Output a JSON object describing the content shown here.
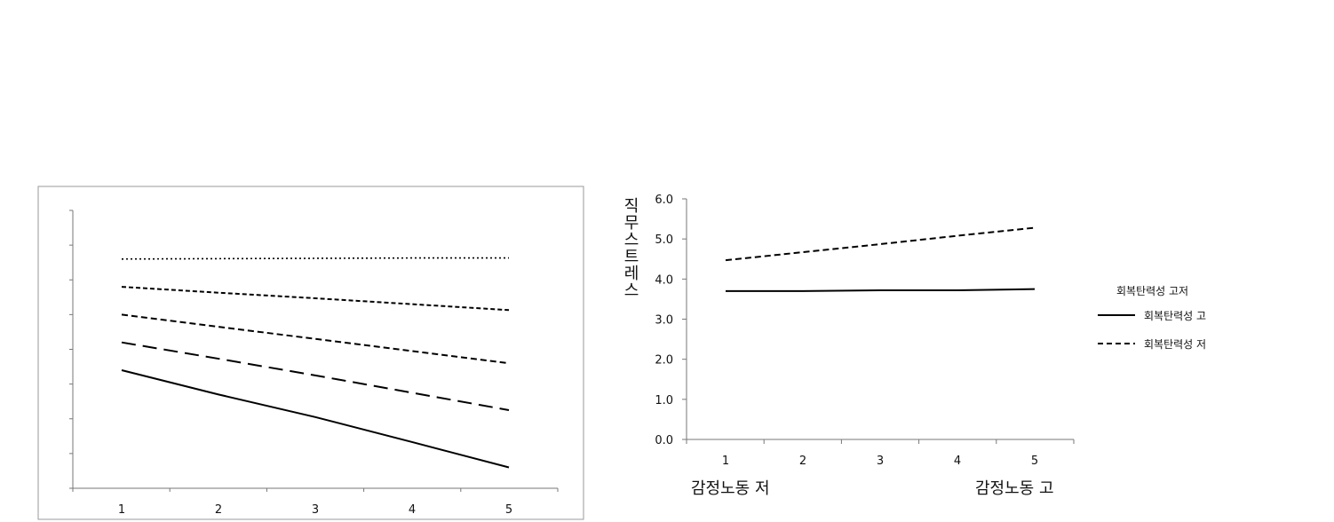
{
  "chart_data": [
    {
      "type": "line",
      "x": [
        1,
        2,
        3,
        4,
        5
      ],
      "y_axis_tick_labels": "none",
      "ylim": [
        0,
        8
      ],
      "series": [
        {
          "style": "dotted",
          "values": [
            6.6,
            6.61,
            6.62,
            6.63,
            6.63
          ]
        },
        {
          "style": "short-dash",
          "values": [
            5.8,
            5.63,
            5.47,
            5.3,
            5.13
          ]
        },
        {
          "style": "dashed",
          "values": [
            5.0,
            4.65,
            4.3,
            3.95,
            3.6
          ]
        },
        {
          "style": "long-dash",
          "values": [
            4.2,
            3.73,
            3.25,
            2.75,
            2.25
          ]
        },
        {
          "style": "solid",
          "values": [
            3.4,
            2.7,
            2.05,
            1.33,
            0.6
          ]
        }
      ]
    },
    {
      "type": "line",
      "x": [
        1,
        2,
        3,
        4,
        5
      ],
      "ylabel": "직무스트레스",
      "xlabel_left": "감정노동 저",
      "xlabel_right": "감정노동 고",
      "ylim": [
        0,
        6
      ],
      "y_ticks": [
        "0.0",
        "1.0",
        "2.0",
        "3.0",
        "4.0",
        "5.0",
        "6.0"
      ],
      "legend_title": "회복탄력성 고저",
      "series": [
        {
          "name": "회복탄력성 고",
          "style": "solid",
          "values": [
            3.7,
            3.7,
            3.72,
            3.72,
            3.75
          ]
        },
        {
          "name": "회복탄력성 저",
          "style": "dashed",
          "values": [
            4.47,
            4.67,
            4.87,
            5.08,
            5.28
          ]
        }
      ]
    }
  ]
}
